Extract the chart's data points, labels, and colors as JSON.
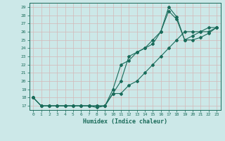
{
  "xlabel": "Humidex (Indice chaleur)",
  "bg_color": "#cce8e8",
  "grid_color": "#aacccc",
  "line_color": "#1a6b5a",
  "xlim": [
    -0.5,
    23.5
  ],
  "ylim": [
    16.5,
    29.5
  ],
  "xticks": [
    0,
    1,
    2,
    3,
    4,
    5,
    6,
    7,
    8,
    9,
    10,
    11,
    12,
    13,
    14,
    15,
    16,
    17,
    18,
    19,
    20,
    21,
    22,
    23
  ],
  "yticks": [
    17,
    18,
    19,
    20,
    21,
    22,
    23,
    24,
    25,
    26,
    27,
    28,
    29
  ],
  "line1_x": [
    0,
    1,
    2,
    3,
    4,
    5,
    6,
    7,
    8,
    9,
    10,
    11,
    12,
    13,
    14,
    15,
    16,
    17,
    18,
    19,
    20,
    21,
    22,
    23
  ],
  "line1_y": [
    18,
    17,
    17,
    17,
    17,
    17,
    17,
    17,
    16.8,
    17,
    19,
    22,
    22.5,
    23.5,
    24,
    24.5,
    26,
    29,
    27.8,
    25,
    25,
    25.3,
    25.8,
    26.5
  ],
  "line2_x": [
    0,
    1,
    2,
    3,
    4,
    5,
    6,
    7,
    8,
    9,
    10,
    11,
    12,
    13,
    14,
    15,
    16,
    17,
    18,
    19,
    20,
    21,
    22,
    23
  ],
  "line2_y": [
    18,
    17,
    17,
    17,
    17,
    17,
    17,
    17,
    17,
    17,
    18.5,
    18.5,
    19.5,
    20,
    21,
    22,
    23,
    24,
    25,
    26,
    26,
    26,
    26.5,
    26.5
  ],
  "line3_x": [
    0,
    1,
    2,
    3,
    4,
    5,
    6,
    7,
    8,
    9,
    10,
    11,
    12,
    13,
    14,
    15,
    16,
    17,
    18,
    19,
    20,
    21,
    22,
    23
  ],
  "line3_y": [
    18,
    17,
    17,
    17,
    17,
    17,
    17,
    17,
    17,
    17,
    18.5,
    20,
    23,
    23.5,
    24,
    25,
    26,
    28.5,
    27.5,
    25,
    25.5,
    26,
    26,
    26.5
  ]
}
